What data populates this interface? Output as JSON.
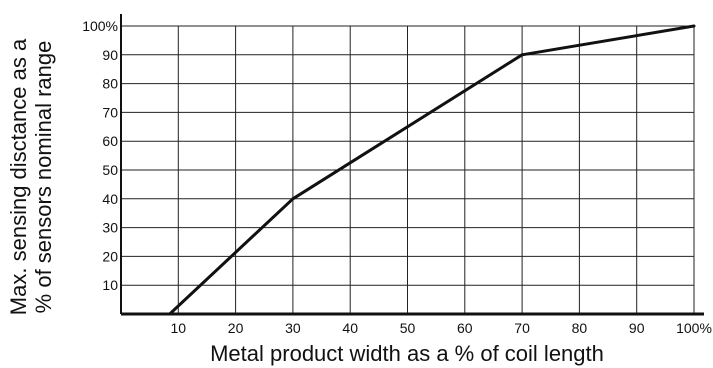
{
  "chart_data": {
    "type": "line",
    "title": "",
    "xlabel": "Metal product width as a % of coil length",
    "ylabel_lines": [
      "Max. sensing disctance as a",
      "% of sensors nominal range"
    ],
    "xlim": [
      0,
      100
    ],
    "ylim": [
      0,
      100
    ],
    "x_ticks": [
      10,
      20,
      30,
      40,
      50,
      60,
      70,
      80,
      90,
      100
    ],
    "x_tick_labels": [
      "10",
      "20",
      "30",
      "40",
      "50",
      "60",
      "70",
      "80",
      "90",
      "100%"
    ],
    "y_ticks": [
      10,
      20,
      30,
      40,
      50,
      60,
      70,
      80,
      90,
      100
    ],
    "y_tick_labels": [
      "10",
      "20",
      "30",
      "40",
      "50",
      "60",
      "70",
      "80",
      "90",
      "100%"
    ],
    "grid": true,
    "series": [
      {
        "x": [
          8.5,
          30,
          70,
          100
        ],
        "y": [
          0,
          40,
          90,
          100
        ]
      }
    ],
    "line_color": "#111111",
    "grid_color": "#222222"
  }
}
